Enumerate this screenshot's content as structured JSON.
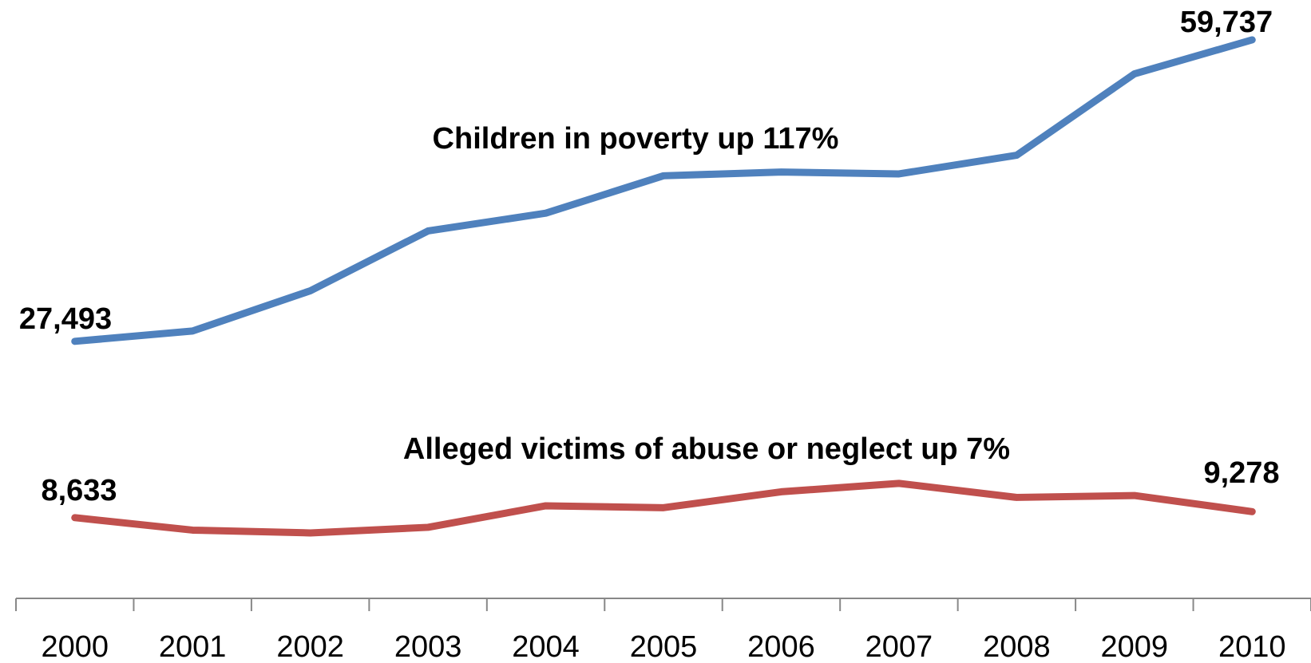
{
  "chart_data": {
    "type": "line",
    "categories": [
      "2000",
      "2001",
      "2002",
      "2003",
      "2004",
      "2005",
      "2006",
      "2007",
      "2008",
      "2009",
      "2010"
    ],
    "series": [
      {
        "values": [
          27493,
          28600,
          32900,
          39300,
          41200,
          45200,
          45600,
          45400,
          47400,
          56100,
          59737
        ],
        "color": "#4F81BD",
        "annotation": "Children in poverty up 117%",
        "first_label": "27,493",
        "last_label": "59,737"
      },
      {
        "values": [
          8633,
          7300,
          7000,
          7600,
          9900,
          9700,
          11400,
          12300,
          10800,
          11000,
          9278
        ],
        "color": "#C0504D",
        "annotation": "Alleged victims of abuse or neglect up 7%",
        "first_label": "8,633",
        "last_label": "9,278"
      }
    ],
    "xlabel": "",
    "ylabel": "",
    "ylim": [
      0,
      64000
    ],
    "y_axis_shown": false,
    "grid": false,
    "legend": "none"
  }
}
